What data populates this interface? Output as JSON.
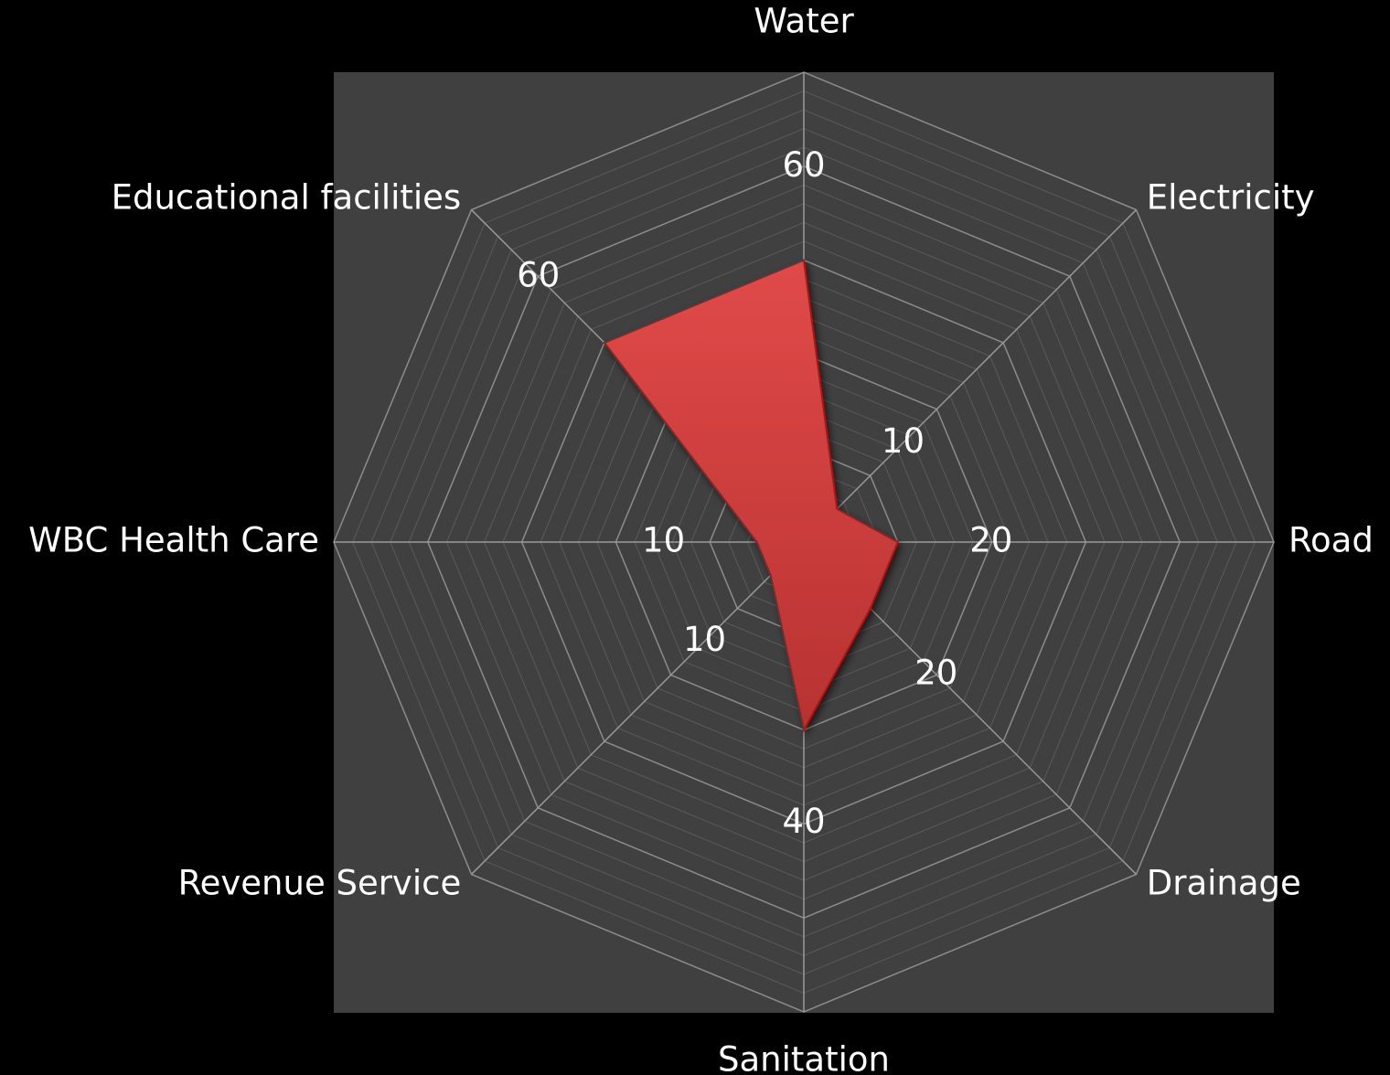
{
  "chart_data": {
    "type": "radar",
    "categories": [
      "Water",
      "Electricity",
      "Road",
      "Drainage",
      "Sanitation",
      "Revenue Service",
      "WBC Health Care",
      "Educational facilities"
    ],
    "values": [
      60,
      10,
      20,
      20,
      40,
      10,
      10,
      60
    ],
    "color": "#d84040",
    "ylim": [
      0,
      100
    ],
    "yticks": [
      0,
      20,
      40,
      60,
      80,
      100
    ],
    "minor_yticks": [
      4,
      8,
      12,
      16,
      24,
      28,
      32,
      36,
      44,
      48,
      52,
      56,
      64,
      68,
      72,
      76,
      84,
      88,
      92,
      96
    ],
    "grid": true
  }
}
